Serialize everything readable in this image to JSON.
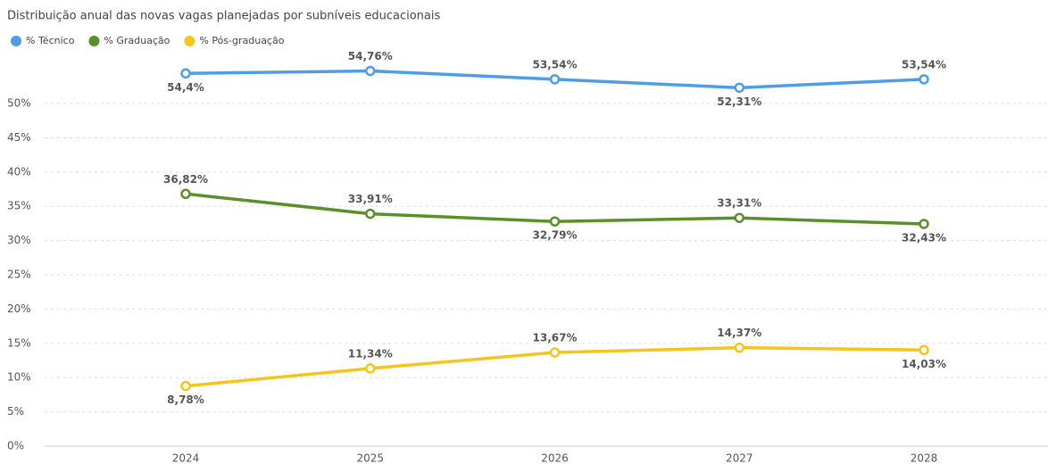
{
  "chart_data": {
    "type": "line",
    "title": "Distribuição anual das novas vagas planejadas por subníveis educacionais",
    "categories": [
      "2024",
      "2025",
      "2026",
      "2027",
      "2028"
    ],
    "series": [
      {
        "name": "% Técnico",
        "color": "#4e9de6",
        "values": [
          54.4,
          54.76,
          53.54,
          52.31,
          53.54
        ],
        "value_labels": [
          "54,4%",
          "54,76%",
          "53,54%",
          "52,31%",
          "53,54%"
        ]
      },
      {
        "name": "% Graduação",
        "color": "#5b8f29",
        "values": [
          36.82,
          33.91,
          32.79,
          33.31,
          32.43
        ],
        "value_labels": [
          "36,82%",
          "33,91%",
          "32,79%",
          "33,31%",
          "32,43%"
        ]
      },
      {
        "name": "% Pós-graduação",
        "color": "#f4c51c",
        "values": [
          8.78,
          11.34,
          13.67,
          14.37,
          14.03
        ],
        "value_labels": [
          "8,78%",
          "11,34%",
          "13,67%",
          "14,37%",
          "14,03%"
        ]
      }
    ],
    "ylim": [
      0,
      57.3
    ],
    "yticks": [
      {
        "value": 0,
        "label": "0%"
      },
      {
        "value": 5,
        "label": "5%"
      },
      {
        "value": 10,
        "label": "10%"
      },
      {
        "value": 15,
        "label": "15%"
      },
      {
        "value": 20,
        "label": "20%"
      },
      {
        "value": 25,
        "label": "25%"
      },
      {
        "value": 30,
        "label": "30%"
      },
      {
        "value": 35,
        "label": "35%"
      },
      {
        "value": 40,
        "label": "40%"
      },
      {
        "value": 45,
        "label": "45%"
      },
      {
        "value": 50,
        "label": "50%"
      }
    ],
    "grid": true,
    "legend": "top-left"
  }
}
